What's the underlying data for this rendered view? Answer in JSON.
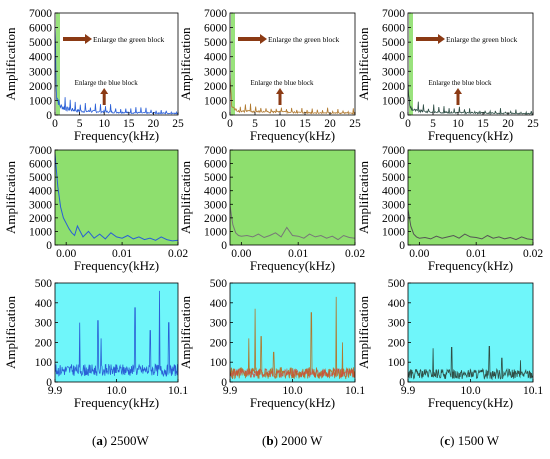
{
  "axis_ylabel": "Amplification",
  "captions": [
    {
      "letter": "a",
      "text": "2500W"
    },
    {
      "letter": "b",
      "text": "2000 W"
    },
    {
      "letter": "c",
      "text": "1500 W"
    }
  ],
  "colors": {
    "green_block": "#8edf6e",
    "blue_block": "#6ff6fa",
    "arrow": "#8b3a14",
    "trace_a": "#2a5fd6",
    "trace_b": "#b0792f",
    "trace_c": "#2f4f46",
    "green_trace_b": "#777777",
    "green_trace_c": "#555555"
  },
  "chart_data": [
    {
      "id": "a-full",
      "type": "line",
      "background": "white",
      "xlabel": "Frequency(kHz)",
      "ylabel": "Amplification",
      "xlim": [
        0,
        25
      ],
      "ylim": [
        0,
        7000
      ],
      "xticks": [
        0,
        5,
        10,
        15,
        20,
        25
      ],
      "yticks": [
        0,
        1000,
        2000,
        3000,
        4000,
        5000,
        6000,
        7000
      ],
      "annotations": [
        "Enlarge the green block",
        "Enlarge the blue block"
      ],
      "series": [
        {
          "x": [
            0.02,
            0.3,
            1,
            2,
            5,
            10,
            15,
            20,
            25
          ],
          "values": [
            6800,
            1500,
            700,
            500,
            300,
            250,
            180,
            150,
            120
          ]
        }
      ]
    },
    {
      "id": "b-full",
      "type": "line",
      "background": "white",
      "xlabel": "Frequency(kHz)",
      "ylabel": "Amplification",
      "xlim": [
        0,
        25
      ],
      "ylim": [
        0,
        7000
      ],
      "xticks": [
        0,
        5,
        10,
        15,
        20,
        25
      ],
      "yticks": [
        0,
        1000,
        2000,
        3000,
        4000,
        5000,
        6000,
        7000
      ],
      "annotations": [
        "Enlarge the green block",
        "Enlarge the blue block"
      ],
      "series": [
        {
          "x": [
            0.02,
            0.3,
            1,
            2,
            5,
            10,
            15,
            20,
            25
          ],
          "values": [
            3000,
            700,
            400,
            300,
            250,
            220,
            180,
            150,
            130
          ]
        }
      ]
    },
    {
      "id": "c-full",
      "type": "line",
      "background": "white",
      "xlabel": "Frequency(kHz)",
      "ylabel": "Amplification",
      "xlim": [
        0,
        25
      ],
      "ylim": [
        0,
        7000
      ],
      "xticks": [
        0,
        5,
        10,
        15,
        20,
        25
      ],
      "yticks": [
        0,
        1000,
        2000,
        3000,
        4000,
        5000,
        6000,
        7000
      ],
      "annotations": [
        "Enlarge the green block",
        "Enlarge the blue block"
      ],
      "series": [
        {
          "x": [
            0.02,
            0.3,
            1,
            2,
            5,
            10,
            15,
            20,
            25
          ],
          "values": [
            2500,
            700,
            400,
            300,
            220,
            180,
            150,
            120,
            100
          ]
        }
      ]
    },
    {
      "id": "a-green",
      "type": "line",
      "background": "green",
      "xlabel": "Frequency(kHz)",
      "ylabel": "Amplification",
      "xlim": [
        -0.002,
        0.02
      ],
      "ylim": [
        0,
        7000
      ],
      "xticks": [
        0.0,
        0.01,
        0.02
      ],
      "xtick_labels": [
        "0.00",
        "0.01",
        "0.02"
      ],
      "yticks": [
        0,
        1000,
        2000,
        3000,
        4000,
        5000,
        6000,
        7000
      ],
      "series": [
        {
          "x": [
            -0.002,
            -0.0015,
            -0.001,
            -0.0005,
            0.0,
            0.0005,
            0.001,
            0.0015,
            0.002,
            0.003,
            0.004,
            0.005,
            0.006,
            0.007,
            0.008,
            0.009,
            0.01,
            0.011,
            0.012,
            0.013,
            0.014,
            0.015,
            0.016,
            0.017,
            0.018,
            0.019,
            0.02
          ],
          "values": [
            6700,
            4300,
            2800,
            2000,
            1600,
            1200,
            900,
            700,
            1400,
            600,
            1000,
            500,
            800,
            450,
            900,
            600,
            500,
            700,
            450,
            600,
            400,
            500,
            350,
            600,
            400,
            300,
            350
          ]
        }
      ]
    },
    {
      "id": "b-green",
      "type": "line",
      "background": "green",
      "xlabel": "Frequency(kHz)",
      "ylabel": "Amplification",
      "xlim": [
        -0.002,
        0.02
      ],
      "ylim": [
        0,
        7000
      ],
      "xticks": [
        0.0,
        0.01,
        0.02
      ],
      "xtick_labels": [
        "0.00",
        "0.01",
        "0.02"
      ],
      "yticks": [
        0,
        1000,
        2000,
        3000,
        4000,
        5000,
        6000,
        7000
      ],
      "series": [
        {
          "x": [
            -0.002,
            -0.0015,
            -0.001,
            -0.0005,
            0.0,
            0.001,
            0.002,
            0.003,
            0.004,
            0.005,
            0.006,
            0.007,
            0.008,
            0.009,
            0.01,
            0.011,
            0.012,
            0.013,
            0.014,
            0.015,
            0.016,
            0.017,
            0.018,
            0.019,
            0.02
          ],
          "values": [
            2900,
            1500,
            900,
            700,
            650,
            700,
            600,
            800,
            550,
            700,
            900,
            600,
            1300,
            700,
            650,
            500,
            800,
            600,
            700,
            500,
            650,
            400,
            700,
            550,
            500
          ]
        }
      ]
    },
    {
      "id": "c-green",
      "type": "line",
      "background": "green",
      "xlabel": "Frequency(kHz)",
      "ylabel": "Amplification",
      "xlim": [
        -0.002,
        0.02
      ],
      "ylim": [
        0,
        7000
      ],
      "xticks": [
        0.0,
        0.01,
        0.02
      ],
      "xtick_labels": [
        "0.00",
        "0.01",
        "0.02"
      ],
      "yticks": [
        0,
        1000,
        2000,
        3000,
        4000,
        5000,
        6000,
        7000
      ],
      "series": [
        {
          "x": [
            -0.002,
            -0.0015,
            -0.001,
            -0.0005,
            0.0,
            0.001,
            0.002,
            0.003,
            0.004,
            0.005,
            0.006,
            0.007,
            0.008,
            0.009,
            0.01,
            0.011,
            0.012,
            0.013,
            0.014,
            0.015,
            0.016,
            0.017,
            0.018,
            0.019,
            0.02
          ],
          "values": [
            2600,
            1400,
            800,
            600,
            500,
            550,
            450,
            650,
            500,
            600,
            700,
            500,
            800,
            600,
            550,
            450,
            700,
            500,
            600,
            450,
            550,
            400,
            600,
            450,
            400
          ]
        }
      ]
    },
    {
      "id": "a-blue",
      "type": "line",
      "background": "blue",
      "xlabel": "Frequency(kHz)",
      "ylabel": "Amplification",
      "xlim": [
        9.9,
        10.1
      ],
      "ylim": [
        0,
        500
      ],
      "xticks": [
        9.9,
        10.0,
        10.1
      ],
      "xtick_labels": [
        "9.9",
        "10.0",
        "10.1"
      ],
      "yticks": [
        0,
        100,
        200,
        300,
        400,
        500
      ],
      "baseline": 60,
      "noise": 30,
      "peaks": [
        [
          9.94,
          300
        ],
        [
          9.97,
          310
        ],
        [
          9.975,
          220
        ],
        [
          10.03,
          375
        ],
        [
          10.055,
          260
        ],
        [
          10.07,
          460
        ],
        [
          10.085,
          300
        ]
      ]
    },
    {
      "id": "b-blue",
      "type": "line",
      "background": "blue",
      "xlabel": "Frequency(kHz)",
      "ylabel": "Amplification",
      "xlim": [
        9.9,
        10.1
      ],
      "ylim": [
        0,
        500
      ],
      "xticks": [
        9.9,
        10.0,
        10.1
      ],
      "xtick_labels": [
        "9.9",
        "10.0",
        "10.1"
      ],
      "yticks": [
        0,
        100,
        200,
        300,
        400,
        500
      ],
      "baseline": 45,
      "noise": 30,
      "peaks": [
        [
          9.93,
          220
        ],
        [
          9.94,
          370
        ],
        [
          9.95,
          230
        ],
        [
          9.97,
          150
        ],
        [
          10.03,
          350
        ],
        [
          10.07,
          430
        ],
        [
          10.08,
          200
        ]
      ]
    },
    {
      "id": "c-blue",
      "type": "line",
      "background": "blue",
      "xlabel": "Frequency(kHz)",
      "ylabel": "Amplification",
      "xlim": [
        9.9,
        10.1
      ],
      "ylim": [
        0,
        500
      ],
      "xticks": [
        9.9,
        10.0,
        10.1
      ],
      "xtick_labels": [
        "9.9",
        "10.0",
        "10.1"
      ],
      "yticks": [
        0,
        100,
        200,
        300,
        400,
        500
      ],
      "baseline": 40,
      "noise": 25,
      "peaks": [
        [
          9.94,
          170
        ],
        [
          9.97,
          175
        ],
        [
          10.03,
          180
        ],
        [
          10.05,
          120
        ],
        [
          10.08,
          110
        ]
      ]
    }
  ]
}
